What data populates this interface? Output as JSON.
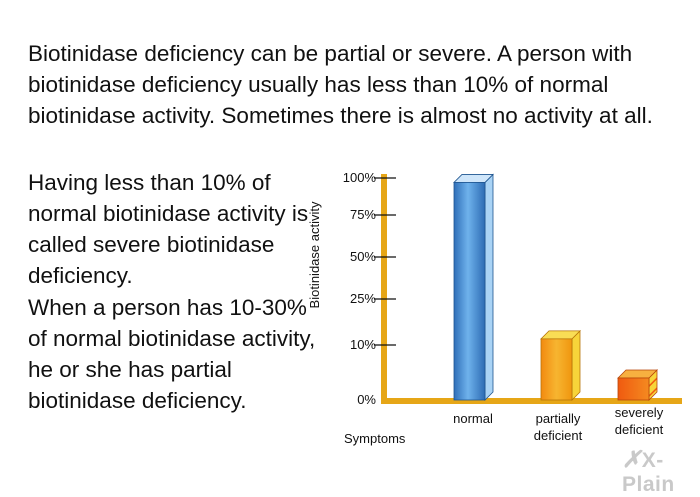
{
  "text": {
    "intro": "Biotinidase deficiency can be partial or severe. A person with biotinidase deficiency usually has less than 10% of normal biotinidase activity. Sometimes there is almost no activity at all.",
    "severe_paragraph": "Having less than 10% of normal biotinidase activity is called severe biotinidase deficiency.",
    "partial_paragraph": "When a person has 10-30% of normal biotinidase activity, he or she has partial biotinidase deficiency."
  },
  "watermark": "X-Plain",
  "chart_data": {
    "type": "bar",
    "title": "",
    "xlabel": "Symptoms",
    "ylabel": "Biotinidase activity",
    "categories": [
      "normal",
      "partially deficient",
      "severely deficient"
    ],
    "values": [
      97,
      12,
      4
    ],
    "yticks": [
      {
        "label": "0%",
        "value": 0
      },
      {
        "label": "10%",
        "value": 10
      },
      {
        "label": "25%",
        "value": 25
      },
      {
        "label": "50%",
        "value": 50
      },
      {
        "label": "75%",
        "value": 75
      },
      {
        "label": "100%",
        "value": 100
      }
    ],
    "ylim": [
      0,
      100
    ],
    "grid": false,
    "legend": "none",
    "colors": {
      "axis": "#e6a617",
      "normal": "#3a8fd6",
      "partial": "#f0a21a",
      "severe": "#f06018"
    }
  }
}
